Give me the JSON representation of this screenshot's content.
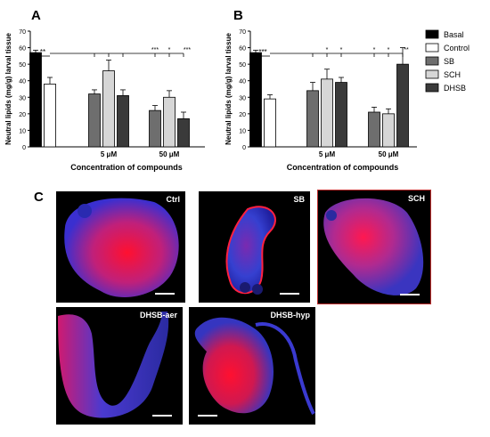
{
  "chart_data": [
    {
      "panel": "A",
      "type": "bar",
      "ylabel": "Neutral lipids (mg/g) larval tissue",
      "xlabel": "Concentration of compounds",
      "ylim": [
        0,
        70
      ],
      "yticks": [
        "0",
        "10",
        "20",
        "30",
        "40",
        "50",
        "60",
        "70"
      ],
      "groups": [
        {
          "label": "",
          "bars": [
            {
              "series": "Basal",
              "value": 57,
              "err": 1.5
            },
            {
              "series": "Control",
              "value": 38,
              "err": 4
            }
          ]
        },
        {
          "label": "5 μM",
          "bars": [
            {
              "series": "SB",
              "value": 32,
              "err": 2.5
            },
            {
              "series": "SCH",
              "value": 46,
              "err": 6.5
            },
            {
              "series": "DHSB",
              "value": 31,
              "err": 3.5
            }
          ]
        },
        {
          "label": "50 μM",
          "bars": [
            {
              "series": "SB",
              "value": 22,
              "err": 3
            },
            {
              "series": "SCH",
              "value": 30,
              "err": 4
            },
            {
              "series": "DHSB",
              "value": 17,
              "err": 4
            }
          ]
        }
      ],
      "significance": [
        "**",
        "***",
        "*",
        "***"
      ]
    },
    {
      "panel": "B",
      "type": "bar",
      "ylabel": "Neutral lipids (mg/g) larval tissue",
      "xlabel": "Concentration of compounds",
      "ylim": [
        0,
        70
      ],
      "yticks": [
        "0",
        "10",
        "20",
        "30",
        "40",
        "50",
        "60",
        "70"
      ],
      "groups": [
        {
          "label": "",
          "bars": [
            {
              "series": "Basal",
              "value": 57,
              "err": 1.5
            },
            {
              "series": "Control",
              "value": 29,
              "err": 2.5
            }
          ]
        },
        {
          "label": "5 μM",
          "bars": [
            {
              "series": "SB",
              "value": 34,
              "err": 5
            },
            {
              "series": "SCH",
              "value": 41,
              "err": 6
            },
            {
              "series": "DHSB",
              "value": 39,
              "err": 3
            }
          ]
        },
        {
          "label": "50 μM",
          "bars": [
            {
              "series": "SB",
              "value": 21,
              "err": 3
            },
            {
              "series": "SCH",
              "value": 20,
              "err": 3
            },
            {
              "series": "DHSB",
              "value": 50,
              "err": 10
            }
          ]
        }
      ],
      "significance": [
        "***",
        "*",
        "*",
        "*",
        "*",
        "**"
      ]
    }
  ],
  "legend": [
    {
      "name": "Basal",
      "color": "#000000"
    },
    {
      "name": "Control",
      "color": "#ffffff"
    },
    {
      "name": "SB",
      "color": "#6e6e6e"
    },
    {
      "name": "SCH",
      "color": "#d6d6d6"
    },
    {
      "name": "DHSB",
      "color": "#3a3a3a"
    }
  ],
  "panel_c": {
    "letter": "C",
    "images": [
      {
        "label": "Ctrl"
      },
      {
        "label": "SB"
      },
      {
        "label": "SCH"
      },
      {
        "label": "DHSB-aer"
      },
      {
        "label": "DHSB-hyp"
      }
    ]
  }
}
